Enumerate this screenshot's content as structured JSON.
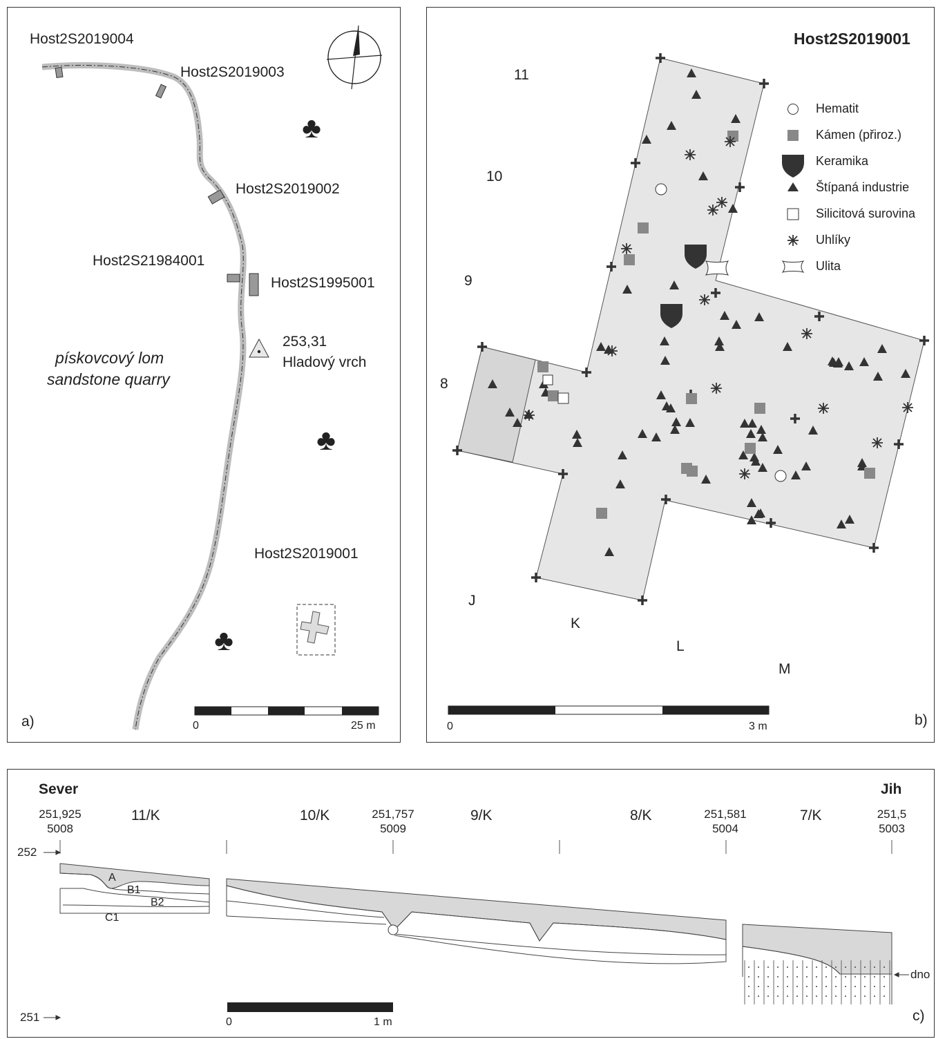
{
  "panel_a": {
    "site_labels": [
      "Host2S2019004",
      "Host2S2019003",
      "Host2S2019002",
      "Host2S21984001",
      "Host2S1995001",
      "Host2S2019001"
    ],
    "elevation": "253,31",
    "peak_name": "Hladový vrch",
    "quarry_cz": "pískovcový lom",
    "quarry_en": "sandstone quarry",
    "scale_start": "0",
    "scale_end": "25 m",
    "panel_letter": "a)"
  },
  "panel_b": {
    "title": "Host2S2019001",
    "grid_rows": [
      "11",
      "10",
      "9",
      "8"
    ],
    "grid_cols": [
      "J",
      "K",
      "L",
      "M"
    ],
    "legend": [
      "Hematit",
      "Kámen (přiroz.)",
      "Keramika",
      "Štípaná industrie",
      "Silicitová surovina",
      "Uhlíky",
      "Ulita"
    ],
    "scale_start": "0",
    "scale_end": "3 m",
    "panel_letter": "b)"
  },
  "panel_c": {
    "north": "Sever",
    "south": "Jih",
    "sections": [
      "11/K",
      "10/K",
      "9/K",
      "8/K",
      "7/K"
    ],
    "markers": [
      {
        "value": "251,925",
        "code": "5008"
      },
      {
        "value": "251,757",
        "code": "5009"
      },
      {
        "value": "251,581",
        "code": "5004"
      },
      {
        "value": "251,5",
        "code": "5003"
      }
    ],
    "level_top": "252",
    "level_bottom": "251",
    "layers": [
      "A",
      "B1",
      "B2",
      "C1"
    ],
    "bottom_label": "dno",
    "scale_start": "0",
    "scale_end": "1 m",
    "panel_letter": "c)"
  }
}
